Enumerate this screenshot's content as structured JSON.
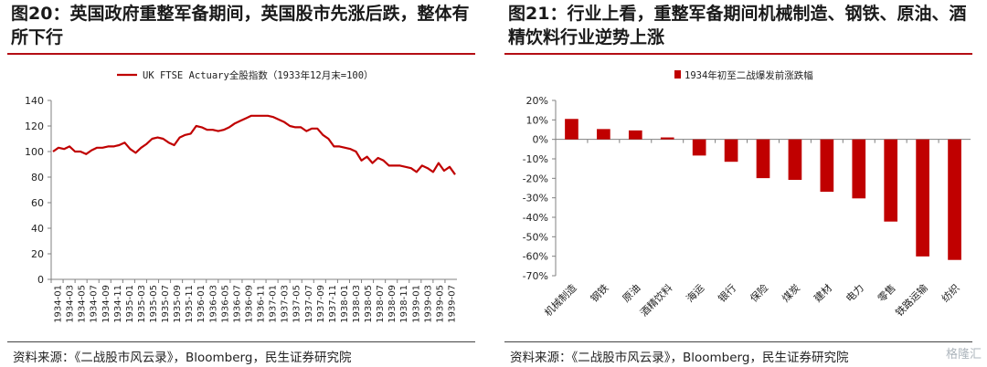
{
  "left": {
    "title": "图20：英国政府重整军备期间，英国股市先涨后跌，整体有所下行",
    "source": "资料来源：《二战股市风云录》，Bloomberg，民生证券研究院"
  },
  "right": {
    "title": "图21：行业上看，重整军备期间机械制造、钢铁、原油、酒精饮料行业逆势上涨",
    "source": "资料来源：《二战股市风云录》，Bloomberg，民生证券研究院"
  },
  "watermark": "格隆汇",
  "colors": {
    "accent": "#b40d14",
    "series": "#c00000",
    "axis": "#808080"
  },
  "chart_data": [
    {
      "type": "line",
      "title": "",
      "xlabel": "",
      "ylabel": "",
      "ylim": [
        0,
        140
      ],
      "yticks": [
        0,
        20,
        40,
        60,
        80,
        100,
        120,
        140
      ],
      "grid": false,
      "legend": "top",
      "x_tick_labels": [
        "1934-01",
        "1934-03",
        "1934-05",
        "1934-07",
        "1934-09",
        "1934-11",
        "1935-01",
        "1935-03",
        "1935-05",
        "1935-07",
        "1935-09",
        "1935-11",
        "1936-01",
        "1936-03",
        "1936-05",
        "1936-07",
        "1936-09",
        "1936-11",
        "1937-01",
        "1937-03",
        "1937-05",
        "1937-07",
        "1937-09",
        "1937-11",
        "1938-01",
        "1938-03",
        "1938-05",
        "1938-07",
        "1938-09",
        "1938-11",
        "1939-01",
        "1939-03",
        "1939-05",
        "1939-07"
      ],
      "series": [
        {
          "name": "UK FTSE Actuary全股指数（1933年12月末=100）",
          "values": [
            100,
            103,
            102,
            104,
            100,
            100,
            98,
            101,
            103,
            103,
            104,
            104,
            105,
            107,
            102,
            99,
            103,
            106,
            110,
            111,
            110,
            107,
            105,
            111,
            113,
            114,
            120,
            119,
            117,
            117,
            116,
            117,
            119,
            122,
            124,
            126,
            128,
            128,
            128,
            128,
            127,
            125,
            123,
            120,
            119,
            119,
            116,
            118,
            118,
            113,
            110,
            104,
            104,
            103,
            102,
            100,
            93,
            96,
            91,
            95,
            93,
            89,
            89,
            89,
            88,
            87,
            84,
            89,
            87,
            84,
            91,
            85,
            88,
            82
          ]
        }
      ]
    },
    {
      "type": "bar",
      "title": "",
      "xlabel": "",
      "ylabel": "",
      "ylim": [
        -70,
        20
      ],
      "yticks": [
        20,
        10,
        0,
        -10,
        -20,
        -30,
        -40,
        -50,
        -60,
        -70
      ],
      "grid": false,
      "legend": "top",
      "series": [
        {
          "name": "1934年初至二战爆发前涨跌幅",
          "values": [
            10.5,
            5.3,
            4.6,
            1.0,
            -8.3,
            -11.5,
            -19.9,
            -20.8,
            -26.9,
            -30.3,
            -42.2,
            -60.1,
            -61.9
          ]
        }
      ],
      "categories": [
        "机械制造",
        "钢铁",
        "原油",
        "酒精饮料",
        "海运",
        "银行",
        "保险",
        "煤炭",
        "建材",
        "电力",
        "零售",
        "铁路运输",
        "纺织"
      ]
    }
  ]
}
